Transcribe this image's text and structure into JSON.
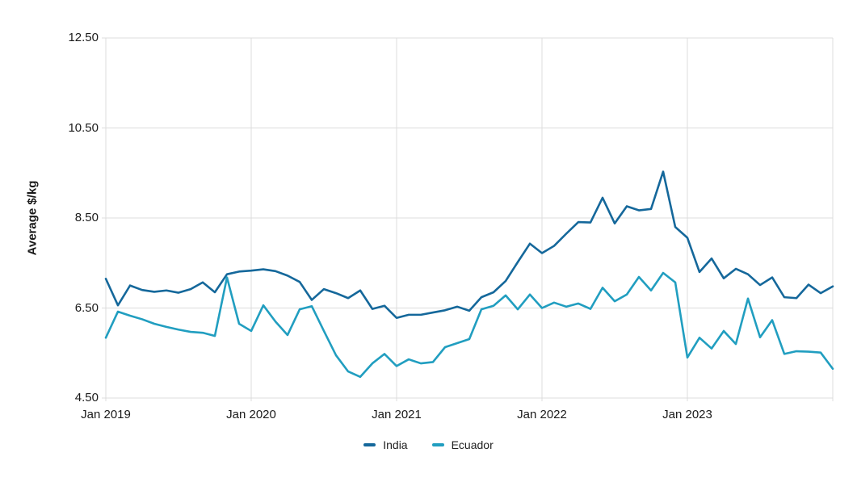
{
  "chart_data": {
    "type": "line",
    "title": "",
    "ylabel": "Average $/kg",
    "ylim": [
      4.5,
      12.5
    ],
    "grid": true,
    "legend_position": "bottom",
    "y_ticks": [
      {
        "value": 12.5,
        "label": "12.50"
      },
      {
        "value": 10.5,
        "label": "10.50"
      },
      {
        "value": 8.5,
        "label": "8.50"
      },
      {
        "value": 6.5,
        "label": "6.50"
      },
      {
        "value": 4.5,
        "label": "4.50"
      }
    ],
    "x_ticks": [
      {
        "index": 0,
        "label": "Jan 2019"
      },
      {
        "index": 12,
        "label": "Jan 2020"
      },
      {
        "index": 24,
        "label": "Jan 2021"
      },
      {
        "index": 36,
        "label": "Jan 2022"
      },
      {
        "index": 48,
        "label": "Jan 2023"
      },
      {
        "index": 60,
        "label": ""
      }
    ],
    "months": [
      "2019-01",
      "2019-02",
      "2019-03",
      "2019-04",
      "2019-05",
      "2019-06",
      "2019-07",
      "2019-08",
      "2019-09",
      "2019-10",
      "2019-11",
      "2019-12",
      "2020-01",
      "2020-02",
      "2020-03",
      "2020-04",
      "2020-05",
      "2020-06",
      "2020-07",
      "2020-08",
      "2020-09",
      "2020-10",
      "2020-11",
      "2020-12",
      "2021-01",
      "2021-02",
      "2021-03",
      "2021-04",
      "2021-05",
      "2021-06",
      "2021-07",
      "2021-08",
      "2021-09",
      "2021-10",
      "2021-11",
      "2021-12",
      "2022-01",
      "2022-02",
      "2022-03",
      "2022-04",
      "2022-05",
      "2022-06",
      "2022-07",
      "2022-08",
      "2022-09",
      "2022-10",
      "2022-11",
      "2022-12",
      "2023-01",
      "2023-02",
      "2023-03",
      "2023-04",
      "2023-05",
      "2023-06",
      "2023-07",
      "2023-08",
      "2023-09",
      "2023-10",
      "2023-11",
      "2023-12",
      "2024-01"
    ],
    "series": [
      {
        "name": "India",
        "color": "#15689b",
        "values": [
          7.15,
          6.56,
          7.0,
          6.9,
          6.86,
          6.89,
          6.84,
          6.92,
          7.07,
          6.85,
          7.25,
          7.31,
          7.33,
          7.36,
          7.32,
          7.22,
          7.08,
          6.68,
          6.92,
          6.83,
          6.72,
          6.89,
          6.48,
          6.55,
          6.28,
          6.35,
          6.35,
          6.4,
          6.45,
          6.53,
          6.44,
          6.74,
          6.85,
          7.1,
          7.52,
          7.93,
          7.72,
          7.88,
          8.15,
          8.41,
          8.4,
          8.95,
          8.38,
          8.76,
          8.67,
          8.7,
          9.53,
          8.3,
          8.06,
          7.3,
          7.6,
          7.16,
          7.37,
          7.25,
          7.01,
          7.18,
          6.74,
          6.72,
          7.02,
          6.83,
          6.98
        ]
      },
      {
        "name": "Ecuador",
        "color": "#219ec0",
        "values": [
          5.84,
          6.42,
          6.33,
          6.25,
          6.15,
          6.08,
          6.02,
          5.97,
          5.95,
          5.88,
          7.18,
          6.15,
          5.99,
          6.56,
          6.2,
          5.9,
          6.47,
          6.54,
          5.99,
          5.45,
          5.09,
          4.97,
          5.27,
          5.48,
          5.21,
          5.36,
          5.27,
          5.3,
          5.63,
          5.72,
          5.81,
          6.47,
          6.55,
          6.78,
          6.47,
          6.8,
          6.5,
          6.62,
          6.53,
          6.6,
          6.48,
          6.95,
          6.65,
          6.8,
          7.19,
          6.89,
          7.28,
          7.07,
          5.4,
          5.84,
          5.6,
          5.99,
          5.7,
          6.71,
          5.85,
          6.23,
          5.48,
          5.54,
          5.53,
          5.51,
          5.15
        ]
      }
    ],
    "grid_color": "#dcdcdc",
    "text_color": "#1a1a1a"
  }
}
